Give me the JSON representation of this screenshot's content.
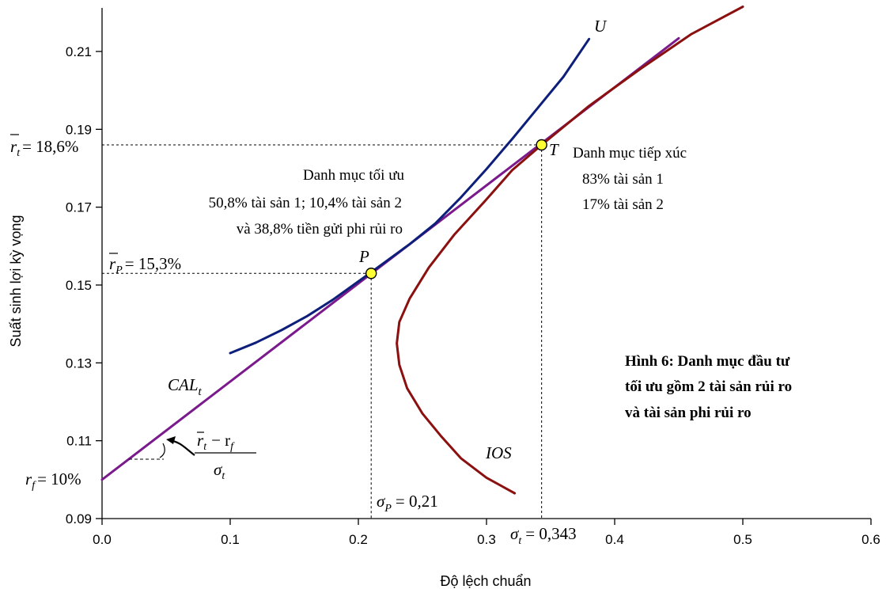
{
  "chart_data": {
    "type": "line",
    "xlabel": "Độ lệch chuẩn",
    "ylabel": "Suất sinh lợi kỳ vọng",
    "xlim": [
      0,
      0.6
    ],
    "ylim": [
      0.09,
      0.22
    ],
    "xticks": [
      "0.0",
      "0.1",
      "0.2",
      "0.3",
      "0.4",
      "0.5",
      "0.6"
    ],
    "yticks": [
      "0.09",
      "0.11",
      "0.13",
      "0.15",
      "0.17",
      "0.19",
      "0.21"
    ],
    "grid": false,
    "series": [
      {
        "name": "CAL",
        "color": "#7a1a8c",
        "x": [
          0.0,
          0.45
        ],
        "y": [
          0.1,
          0.2134
        ]
      },
      {
        "name": "U",
        "color": "#0d1f7a",
        "x": [
          0.1,
          0.12,
          0.14,
          0.16,
          0.18,
          0.21,
          0.24,
          0.26,
          0.28,
          0.3,
          0.32,
          0.34,
          0.36,
          0.38
        ],
        "y": [
          0.1325,
          0.1352,
          0.1384,
          0.142,
          0.1462,
          0.1533,
          0.1605,
          0.1658,
          0.1725,
          0.1798,
          0.1875,
          0.1955,
          0.2035,
          0.2132
        ]
      },
      {
        "name": "IOS",
        "color": "#8b1010",
        "x": [
          0.322,
          0.3,
          0.28,
          0.265,
          0.25,
          0.238,
          0.232,
          0.23,
          0.232,
          0.24,
          0.255,
          0.275,
          0.3,
          0.32,
          0.343,
          0.38,
          0.42,
          0.46,
          0.5
        ],
        "y": [
          0.0965,
          0.1005,
          0.1055,
          0.111,
          0.117,
          0.1235,
          0.1295,
          0.135,
          0.1405,
          0.1465,
          0.1545,
          0.163,
          0.172,
          0.1795,
          0.186,
          0.196,
          0.2055,
          0.2145,
          0.2215
        ]
      }
    ],
    "points": [
      {
        "name": "P",
        "x": 0.21,
        "y": 0.153
      },
      {
        "name": "T",
        "x": 0.343,
        "y": 0.186
      }
    ]
  },
  "labels": {
    "U": "U",
    "CAL_base": "CAL",
    "CAL_sub": "t",
    "IOS": "IOS",
    "P": "P",
    "T": "T",
    "rt_base": "r",
    "rt_sub": "t",
    "rt_value": "= 18,6%",
    "rp_base": "r",
    "rp_sub": "P",
    "rp_value": "= 15,3%",
    "rf_base": "r",
    "rf_sub": "f",
    "rf_value": "= 10%",
    "sigmaP_base": "σ",
    "sigmaP_sub": "P",
    "sigmaP_value": "= 0,21",
    "sigmat_base": "σ",
    "sigmat_sub": "t",
    "sigmat_value": "= 0,343",
    "slope_num_r": "r",
    "slope_num_t": "t",
    "slope_num_minus": "− r",
    "slope_num_f": "f",
    "slope_den_sigma": "σ",
    "slope_den_t": "t"
  },
  "annotations": {
    "optimal_title": "Danh mục tối ưu",
    "optimal_line1": "50,8% tài sản 1; 10,4% tài sản 2",
    "optimal_line2": "và 38,8% tiền gửi phi rủi ro",
    "tangent_title": "Danh mục tiếp xúc",
    "tangent_line1": "83% tài sản 1",
    "tangent_line2": "17% tài sản 2"
  },
  "caption": {
    "line1": "Hình 6: Danh mục đầu tư",
    "line2": "tối ưu gồm 2 tài sản rủi ro",
    "line3": "và tài sản phi rủi ro"
  }
}
